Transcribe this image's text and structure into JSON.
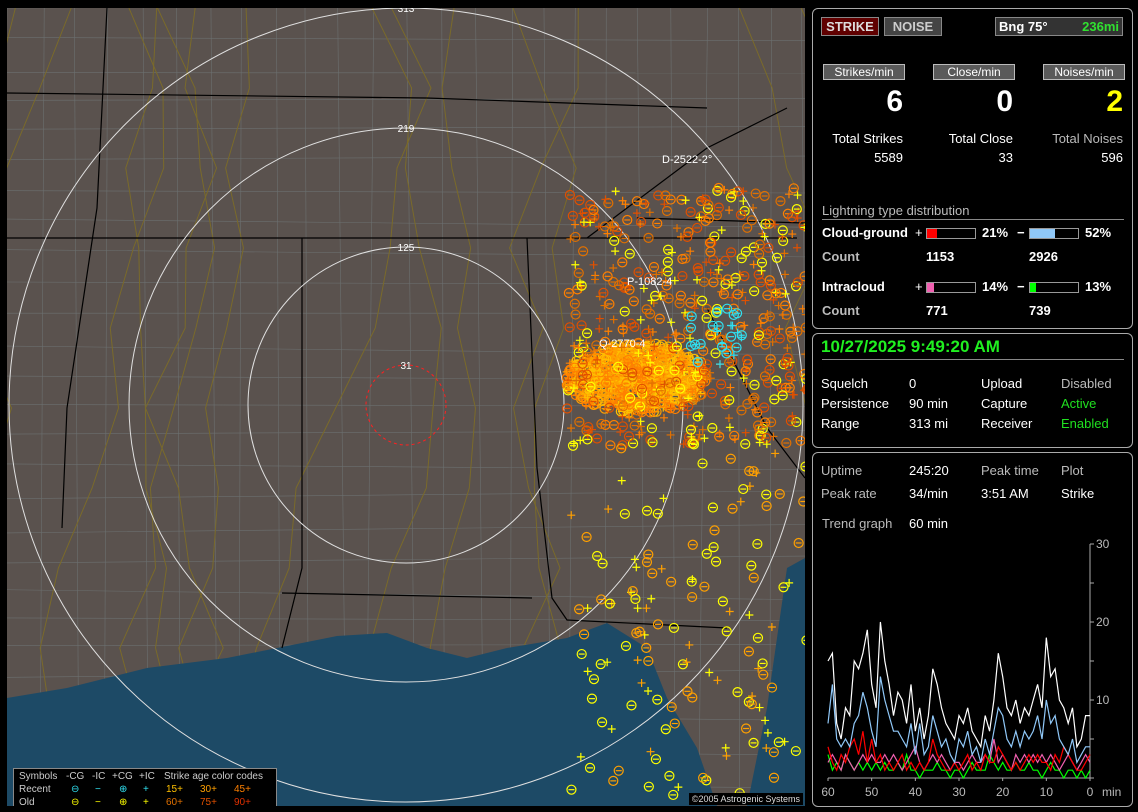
{
  "map": {
    "range_labels": [
      "313",
      "219",
      "125",
      "31"
    ],
    "strike_labels": [
      "D-2522-2°",
      "P-1082-4",
      "Q-2770-4"
    ],
    "copyright": "©2005 Astrogenic Systems",
    "colors": {
      "land": "#5a524e",
      "water": "#1d4a66",
      "county": "#6c7070",
      "state": "#000000",
      "road": "#7a6a2a",
      "ring": "#e0e0e0",
      "close_ring": "#ff2020"
    }
  },
  "legend": {
    "symbols_label": "Symbols",
    "columns": [
      "-CG",
      "-IC",
      "+CG",
      "+IC"
    ],
    "rows": [
      {
        "label": "Recent",
        "symbols": [
          "⊖",
          "−",
          "⊕",
          "+"
        ],
        "color": "#30e0f0"
      },
      {
        "label": "Old",
        "symbols": [
          "⊖",
          "−",
          "⊕",
          "+"
        ],
        "color": "#ffff00"
      }
    ],
    "age_label": "Strike age color codes",
    "age_codes": [
      {
        "label": "15+",
        "color": "#ffc000"
      },
      {
        "label": "30+",
        "color": "#ffa000"
      },
      {
        "label": "45+",
        "color": "#ff8000"
      },
      {
        "label": "60+",
        "color": "#e07000"
      },
      {
        "label": "75+",
        "color": "#e05000"
      },
      {
        "label": "90+",
        "color": "#e03000"
      }
    ]
  },
  "stats": {
    "strike_btn": "STRIKE",
    "noise_btn": "NOISE",
    "bearing": "Bng 75°",
    "distance": "236mi",
    "strikes_min_label": "Strikes/min",
    "close_min_label": "Close/min",
    "noises_min_label": "Noises/min",
    "strikes_min": "6",
    "close_min": "0",
    "noises_min": "2",
    "total_strikes_label": "Total Strikes",
    "total_close_label": "Total Close",
    "total_noises_label": "Total Noises",
    "total_strikes": "5589",
    "total_close": "33",
    "total_noises": "596",
    "dist_title": "Lightning type distribution",
    "cg_label": "Cloud-ground",
    "ic_label": "Intracloud",
    "count_label": "Count",
    "plus": "+",
    "minus": "−",
    "cg_pos_pct": "21%",
    "cg_pos_frac": 0.21,
    "cg_pos_color": "#ff0000",
    "cg_neg_pct": "52%",
    "cg_neg_frac": 0.52,
    "cg_neg_color": "#90c8f8",
    "ic_pos_pct": "14%",
    "ic_pos_frac": 0.14,
    "ic_pos_color": "#f060b0",
    "ic_neg_pct": "13%",
    "ic_neg_frac": 0.13,
    "ic_neg_color": "#00ff00",
    "cg_pos_count": "1153",
    "cg_neg_count": "2926",
    "ic_pos_count": "771",
    "ic_neg_count": "739"
  },
  "status": {
    "datetime": "10/27/2025 9:49:20 AM",
    "squelch_label": "Squelch",
    "squelch": "0",
    "persistence_label": "Persistence",
    "persistence": "90 min",
    "range_label": "Range",
    "range": "313 mi",
    "upload_label": "Upload",
    "upload": "Disabled",
    "capture_label": "Capture",
    "capture": "Active",
    "receiver_label": "Receiver",
    "receiver": "Enabled"
  },
  "trend": {
    "uptime_label": "Uptime",
    "uptime": "245:20",
    "peak_time_label": "Peak time",
    "peak_time": "3:51 AM",
    "plot_label": "Plot",
    "plot": "Strike",
    "peak_rate_label": "Peak rate",
    "peak_rate": "34/min",
    "trend_label": "Trend graph",
    "trend_value": "60 min"
  },
  "chart_data": {
    "type": "line",
    "xlabel": "min",
    "x_ticks": [
      "60",
      "50",
      "40",
      "30",
      "20",
      "10",
      "0"
    ],
    "y_ticks": [
      "10",
      "20",
      "30"
    ],
    "xlim": [
      60,
      0
    ],
    "ylim": [
      0,
      30
    ],
    "x": [
      60,
      59,
      58,
      57,
      56,
      55,
      54,
      53,
      52,
      51,
      50,
      49,
      48,
      47,
      46,
      45,
      44,
      43,
      42,
      41,
      40,
      39,
      38,
      37,
      36,
      35,
      34,
      33,
      32,
      31,
      30,
      29,
      28,
      27,
      26,
      25,
      24,
      23,
      22,
      21,
      20,
      19,
      18,
      17,
      16,
      15,
      14,
      13,
      12,
      11,
      10,
      9,
      8,
      7,
      6,
      5,
      4,
      3,
      2,
      1,
      0
    ],
    "series": [
      {
        "color": "#ffffff",
        "values": [
          15,
          16,
          7,
          5,
          9,
          8,
          15,
          14,
          16,
          19,
          12,
          9,
          20,
          15,
          12,
          8,
          11,
          10,
          7,
          12,
          6,
          9,
          5,
          8,
          14,
          12,
          9,
          7,
          6,
          5,
          8,
          7,
          9,
          6,
          5,
          4,
          8,
          6,
          10,
          16,
          13,
          9,
          8,
          10,
          7,
          9,
          8,
          10,
          12,
          9,
          18,
          13,
          14,
          10,
          9,
          7,
          9,
          4,
          5,
          8,
          8
        ]
      },
      {
        "color": "#90c8f8",
        "values": [
          7,
          12,
          5,
          4,
          5,
          4,
          7,
          8,
          11,
          9,
          6,
          4,
          13,
          10,
          8,
          6,
          6,
          5,
          4,
          7,
          3,
          7,
          3,
          4,
          8,
          6,
          4,
          5,
          3,
          2,
          5,
          4,
          6,
          3,
          4,
          2,
          5,
          3,
          6,
          9,
          8,
          5,
          4,
          6,
          4,
          6,
          5,
          6,
          8,
          5,
          10,
          7,
          8,
          5,
          4,
          3,
          5,
          2,
          3,
          4,
          4
        ]
      },
      {
        "color": "#ff0000",
        "values": [
          4,
          2,
          1,
          3,
          2,
          4,
          5,
          3,
          6,
          2,
          5,
          2,
          3,
          1,
          2,
          1,
          2,
          3,
          1,
          2,
          1,
          2,
          1,
          2,
          5,
          3,
          2,
          1,
          1,
          2,
          1,
          2,
          3,
          1,
          2,
          1,
          3,
          2,
          2,
          4,
          3,
          2,
          1,
          2,
          1,
          2,
          3,
          2,
          3,
          2,
          2,
          1,
          3,
          2,
          4,
          3,
          2,
          1,
          1,
          2,
          3
        ]
      },
      {
        "color": "#f060b0",
        "values": [
          2,
          3,
          2,
          1,
          3,
          2,
          1,
          2,
          3,
          2,
          3,
          2,
          2,
          3,
          2,
          3,
          2,
          1,
          2,
          3,
          4,
          2,
          1,
          2,
          3,
          2,
          3,
          2,
          1,
          2,
          2,
          1,
          2,
          3,
          2,
          2,
          3,
          2,
          5,
          2,
          3,
          2,
          1,
          3,
          2,
          3,
          2,
          3,
          2,
          3,
          2,
          3,
          2,
          1,
          2,
          3,
          2,
          1,
          2,
          3,
          2
        ]
      },
      {
        "color": "#00ff00",
        "values": [
          3,
          1,
          2,
          1,
          3,
          2,
          1,
          2,
          1,
          2,
          1,
          2,
          1,
          2,
          1,
          1,
          2,
          1,
          3,
          1,
          1,
          0,
          1,
          1,
          1,
          2,
          1,
          1,
          0,
          1,
          1,
          0,
          1,
          2,
          1,
          1,
          1,
          3,
          2,
          1,
          2,
          1,
          1,
          2,
          1,
          1,
          2,
          1,
          1,
          0,
          1,
          2,
          1,
          1,
          0,
          1,
          1,
          0,
          1,
          0,
          1
        ]
      }
    ]
  }
}
